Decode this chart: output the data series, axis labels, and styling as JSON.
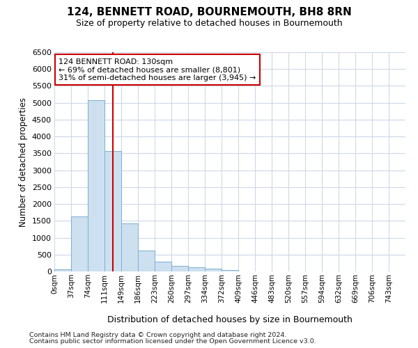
{
  "title": "124, BENNETT ROAD, BOURNEMOUTH, BH8 8RN",
  "subtitle": "Size of property relative to detached houses in Bournemouth",
  "xlabel": "Distribution of detached houses by size in Bournemouth",
  "ylabel": "Number of detached properties",
  "bar_color": "#cde0ef",
  "bar_edge_color": "#7bafd4",
  "grid_color": "#ccd8e8",
  "annotation_line_color": "#cc0000",
  "annotation_box_color": "#cc0000",
  "annotation_line1": "124 BENNETT ROAD: 130sqm",
  "annotation_line2": "← 69% of detached houses are smaller (8,801)",
  "annotation_line3": "31% of semi-detached houses are larger (3,945) →",
  "property_size": 130,
  "categories": [
    "0sqm",
    "37sqm",
    "74sqm",
    "111sqm",
    "149sqm",
    "186sqm",
    "223sqm",
    "260sqm",
    "297sqm",
    "334sqm",
    "372sqm",
    "409sqm",
    "446sqm",
    "483sqm",
    "520sqm",
    "557sqm",
    "594sqm",
    "632sqm",
    "669sqm",
    "706sqm",
    "743sqm"
  ],
  "bin_edges": [
    0,
    37,
    74,
    111,
    149,
    186,
    223,
    260,
    297,
    334,
    372,
    409,
    446,
    483,
    520,
    557,
    594,
    632,
    669,
    706,
    743,
    780
  ],
  "values": [
    60,
    1640,
    5080,
    3580,
    1420,
    610,
    290,
    155,
    130,
    80,
    45,
    10,
    0,
    0,
    0,
    0,
    0,
    0,
    0,
    0,
    0
  ],
  "ylim": [
    0,
    6500
  ],
  "yticks": [
    0,
    500,
    1000,
    1500,
    2000,
    2500,
    3000,
    3500,
    4000,
    4500,
    5000,
    5500,
    6000,
    6500
  ],
  "footer1": "Contains HM Land Registry data © Crown copyright and database right 2024.",
  "footer2": "Contains public sector information licensed under the Open Government Licence v3.0.",
  "background_color": "#ffffff",
  "fig_width": 6.0,
  "fig_height": 5.0,
  "dpi": 100
}
